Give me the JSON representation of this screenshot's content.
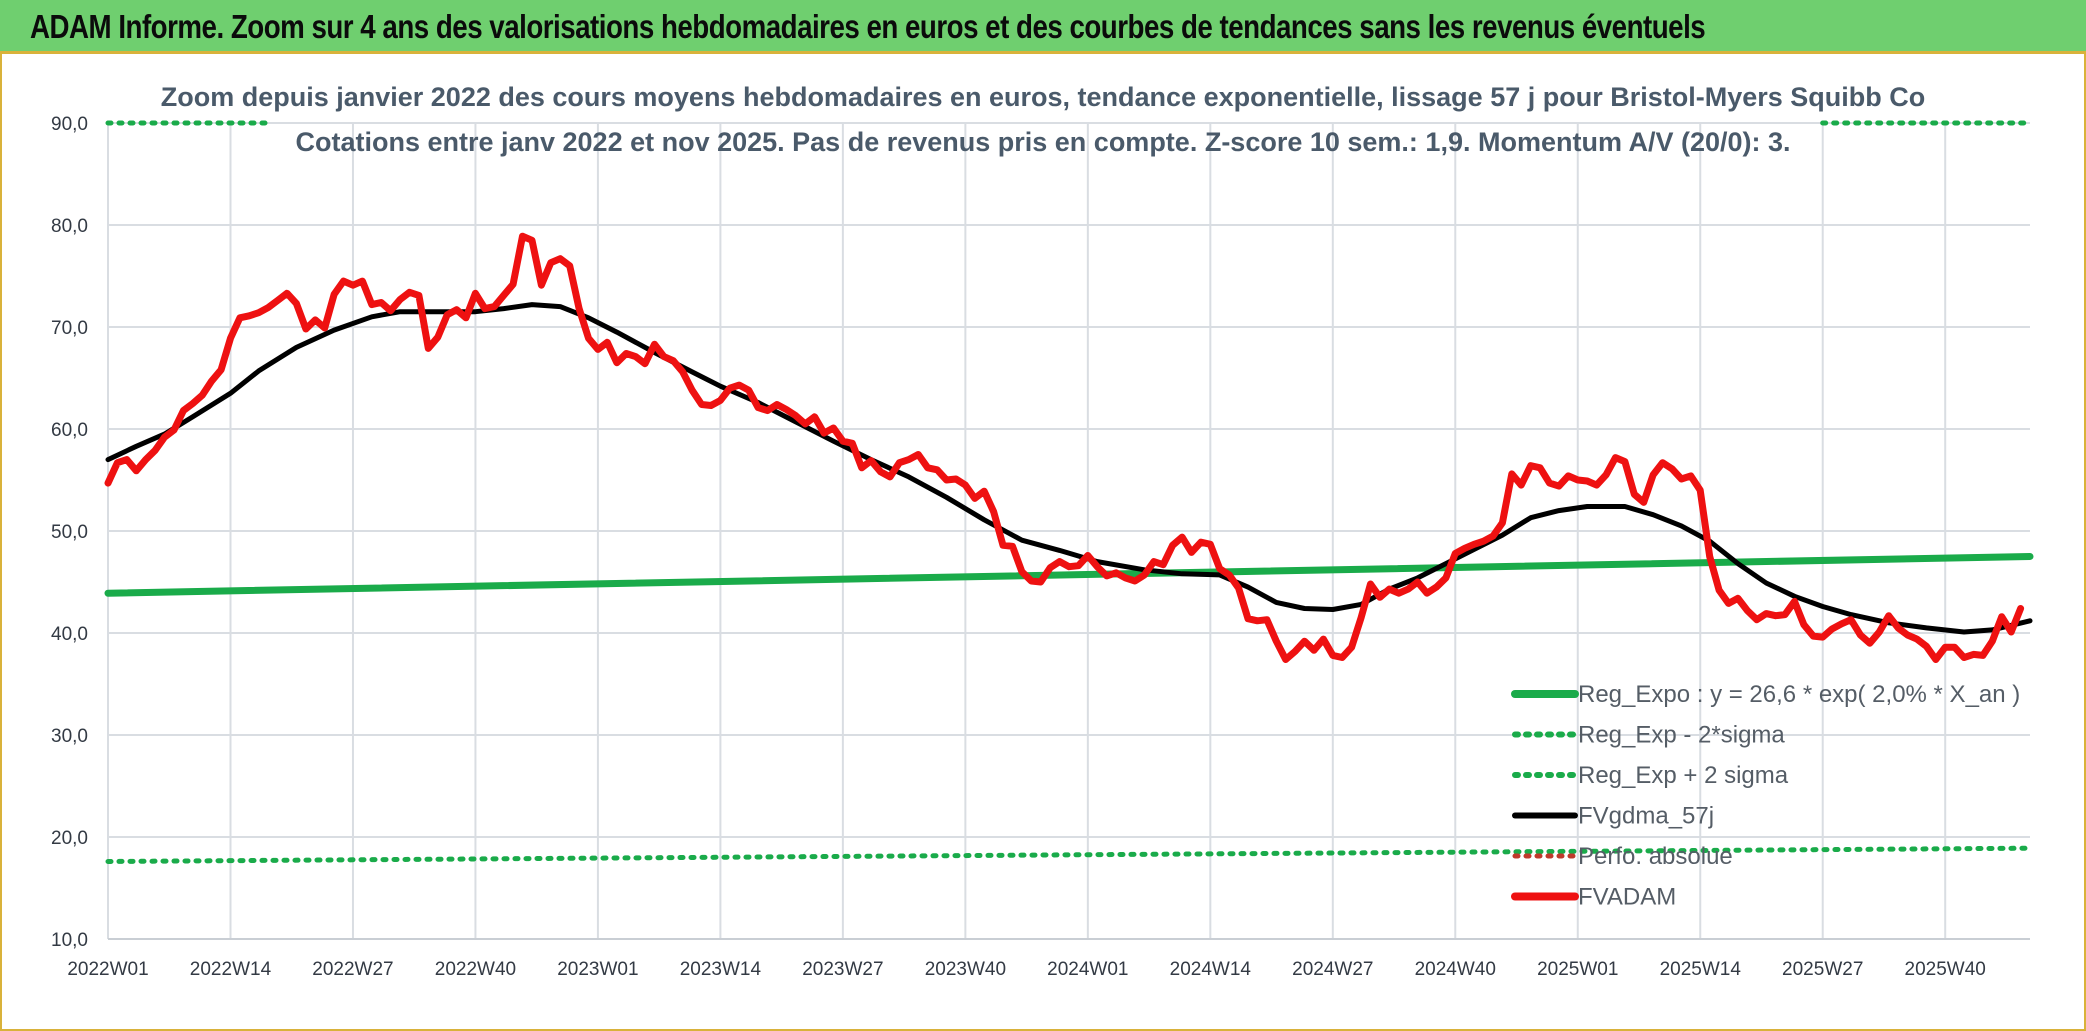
{
  "banner": {
    "title": "ADAM Informe. Zoom sur 4 ans des valorisations hebdomadaires en euros et des courbes de tendances sans les revenus éventuels"
  },
  "colors": {
    "banner_bg": "#6fcf6f",
    "frame": "#d9b23a",
    "reg_expo": "#1aab4a",
    "sigma_dotted": "#1aab4a",
    "fvgdma": "#000000",
    "perfo": "#c0392b",
    "fvadam": "#ee1111"
  },
  "chart_data": {
    "type": "line",
    "title": "Zoom depuis janvier 2022 des cours moyens hebdomadaires en euros, tendance exponentielle, lissage 57 j pour Bristol-Myers Squibb Co",
    "subtitle": "Cotations entre janv 2022 et nov 2025. Pas de revenus pris en compte. Z-score 10 sem.: 1,9. Momentum A/V (20/0): 3.",
    "ylim": [
      10,
      90
    ],
    "y_ticks": [
      "10,0",
      "20,0",
      "30,0",
      "40,0",
      "50,0",
      "60,0",
      "70,0",
      "80,0",
      "90,0"
    ],
    "x_ticks": [
      "2022W01",
      "2022W14",
      "2022W27",
      "2022W40",
      "2023W01",
      "2023W14",
      "2023W27",
      "2023W40",
      "2024W01",
      "2024W14",
      "2024W27",
      "2024W40",
      "2025W01",
      "2025W14",
      "2025W27",
      "2025W40"
    ],
    "x_range_weeks": [
      0,
      204
    ],
    "grid": true,
    "legend_position": "bottom-right",
    "series": [
      {
        "name": "Reg_Expo : y = 26,6 * exp( 2,0% *  X_an )",
        "style": "solid-thick",
        "points": [
          [
            0,
            43.9
          ],
          [
            204,
            47.5
          ]
        ]
      },
      {
        "name": "Reg_Exp - 2*sigma",
        "style": "dotted",
        "points": [
          [
            0,
            17.6
          ],
          [
            204,
            18.9
          ]
        ]
      },
      {
        "name": "Reg_Exp + 2 sigma",
        "style": "dotted",
        "points": [
          [
            0,
            90.0
          ],
          [
            17,
            90.0
          ]
        ],
        "points_b": [
          [
            182,
            90.0
          ],
          [
            204,
            90.0
          ]
        ]
      },
      {
        "name": "FVgdma_57j",
        "style": "solid",
        "points": [
          [
            0,
            57.0
          ],
          [
            3,
            58.3
          ],
          [
            6,
            59.5
          ],
          [
            9,
            61.2
          ],
          [
            13,
            63.5
          ],
          [
            16,
            65.7
          ],
          [
            20,
            68.0
          ],
          [
            24,
            69.7
          ],
          [
            28,
            71.0
          ],
          [
            31,
            71.5
          ],
          [
            35,
            71.5
          ],
          [
            39,
            71.5
          ],
          [
            42,
            71.8
          ],
          [
            45,
            72.2
          ],
          [
            48,
            72.0
          ],
          [
            51,
            70.9
          ],
          [
            54,
            69.5
          ],
          [
            58,
            67.5
          ],
          [
            62,
            65.6
          ],
          [
            65,
            64.2
          ],
          [
            69,
            62.6
          ],
          [
            73,
            60.7
          ],
          [
            77,
            58.8
          ],
          [
            81,
            57.0
          ],
          [
            85,
            55.3
          ],
          [
            89,
            53.3
          ],
          [
            93,
            51.1
          ],
          [
            97,
            49.1
          ],
          [
            101,
            48.1
          ],
          [
            105,
            47.0
          ],
          [
            110,
            46.2
          ],
          [
            114,
            45.8
          ],
          [
            118,
            45.7
          ],
          [
            121,
            44.5
          ],
          [
            124,
            43.0
          ],
          [
            127,
            42.4
          ],
          [
            130,
            42.3
          ],
          [
            133,
            42.8
          ],
          [
            136,
            44.3
          ],
          [
            139,
            45.4
          ],
          [
            142,
            46.8
          ],
          [
            145,
            48.2
          ],
          [
            148,
            49.6
          ],
          [
            151,
            51.3
          ],
          [
            154,
            52.0
          ],
          [
            157,
            52.4
          ],
          [
            161,
            52.4
          ],
          [
            164,
            51.6
          ],
          [
            167,
            50.5
          ],
          [
            170,
            49.0
          ],
          [
            173,
            46.8
          ],
          [
            176,
            44.9
          ],
          [
            179,
            43.6
          ],
          [
            182,
            42.6
          ],
          [
            185,
            41.8
          ],
          [
            189,
            41.0
          ],
          [
            193,
            40.5
          ],
          [
            197,
            40.1
          ],
          [
            200,
            40.3
          ],
          [
            204,
            41.2
          ]
        ]
      },
      {
        "name": "Perfo. absolue",
        "style": "dotted",
        "points": []
      },
      {
        "name": "FVADAM",
        "style": "solid-thick",
        "points": [
          [
            0,
            54.7
          ],
          [
            1,
            56.7
          ],
          [
            2,
            57.0
          ],
          [
            3,
            55.9
          ],
          [
            4,
            57.0
          ],
          [
            5,
            57.9
          ],
          [
            6,
            59.2
          ],
          [
            7,
            59.9
          ],
          [
            8,
            61.8
          ],
          [
            9,
            62.5
          ],
          [
            10,
            63.3
          ],
          [
            11,
            64.7
          ],
          [
            12,
            65.8
          ],
          [
            13,
            68.9
          ],
          [
            14,
            70.9
          ],
          [
            15,
            71.1
          ],
          [
            16,
            71.4
          ],
          [
            17,
            71.9
          ],
          [
            18,
            72.6
          ],
          [
            19,
            73.3
          ],
          [
            20,
            72.3
          ],
          [
            21,
            69.8
          ],
          [
            22,
            70.7
          ],
          [
            23,
            69.9
          ],
          [
            24,
            73.2
          ],
          [
            25,
            74.5
          ],
          [
            26,
            74.1
          ],
          [
            27,
            74.5
          ],
          [
            28,
            72.2
          ],
          [
            29,
            72.4
          ],
          [
            30,
            71.6
          ],
          [
            31,
            72.7
          ],
          [
            32,
            73.4
          ],
          [
            33,
            73.1
          ],
          [
            34,
            67.9
          ],
          [
            35,
            69.0
          ],
          [
            36,
            71.2
          ],
          [
            37,
            71.7
          ],
          [
            38,
            70.9
          ],
          [
            39,
            73.3
          ],
          [
            40,
            71.8
          ],
          [
            41,
            72.0
          ],
          [
            42,
            73.1
          ],
          [
            43,
            74.2
          ],
          [
            44,
            78.9
          ],
          [
            45,
            78.5
          ],
          [
            46,
            74.1
          ],
          [
            47,
            76.3
          ],
          [
            48,
            76.7
          ],
          [
            49,
            76.0
          ],
          [
            50,
            71.8
          ],
          [
            51,
            68.9
          ],
          [
            52,
            67.8
          ],
          [
            53,
            68.5
          ],
          [
            54,
            66.5
          ],
          [
            55,
            67.4
          ],
          [
            56,
            67.1
          ],
          [
            57,
            66.4
          ],
          [
            58,
            68.3
          ],
          [
            59,
            67.1
          ],
          [
            60,
            66.7
          ],
          [
            61,
            65.6
          ],
          [
            62,
            63.8
          ],
          [
            63,
            62.4
          ],
          [
            64,
            62.3
          ],
          [
            65,
            62.8
          ],
          [
            66,
            64.0
          ],
          [
            67,
            64.3
          ],
          [
            68,
            63.8
          ],
          [
            69,
            62.1
          ],
          [
            70,
            61.8
          ],
          [
            71,
            62.4
          ],
          [
            72,
            61.9
          ],
          [
            73,
            61.3
          ],
          [
            74,
            60.5
          ],
          [
            75,
            61.2
          ],
          [
            76,
            59.6
          ],
          [
            77,
            60.1
          ],
          [
            78,
            58.8
          ],
          [
            79,
            58.6
          ],
          [
            80,
            56.2
          ],
          [
            81,
            56.9
          ],
          [
            82,
            55.8
          ],
          [
            83,
            55.3
          ],
          [
            84,
            56.7
          ],
          [
            85,
            57.0
          ],
          [
            86,
            57.5
          ],
          [
            87,
            56.2
          ],
          [
            88,
            56.0
          ],
          [
            89,
            55.0
          ],
          [
            90,
            55.1
          ],
          [
            91,
            54.5
          ],
          [
            92,
            53.2
          ],
          [
            93,
            53.9
          ],
          [
            94,
            51.9
          ],
          [
            95,
            48.6
          ],
          [
            96,
            48.5
          ],
          [
            97,
            46.0
          ],
          [
            98,
            45.1
          ],
          [
            99,
            45.0
          ],
          [
            100,
            46.4
          ],
          [
            101,
            47.0
          ],
          [
            102,
            46.5
          ],
          [
            103,
            46.6
          ],
          [
            104,
            47.6
          ],
          [
            105,
            46.5
          ],
          [
            106,
            45.6
          ],
          [
            107,
            45.9
          ],
          [
            108,
            45.4
          ],
          [
            109,
            45.1
          ],
          [
            110,
            45.7
          ],
          [
            111,
            47.0
          ],
          [
            112,
            46.7
          ],
          [
            113,
            48.6
          ],
          [
            114,
            49.4
          ],
          [
            115,
            47.9
          ],
          [
            116,
            48.9
          ],
          [
            117,
            48.7
          ],
          [
            118,
            46.3
          ],
          [
            119,
            45.7
          ],
          [
            120,
            44.4
          ],
          [
            121,
            41.4
          ],
          [
            122,
            41.2
          ],
          [
            123,
            41.3
          ],
          [
            124,
            39.2
          ],
          [
            125,
            37.4
          ],
          [
            126,
            38.2
          ],
          [
            127,
            39.2
          ],
          [
            128,
            38.3
          ],
          [
            129,
            39.4
          ],
          [
            130,
            37.8
          ],
          [
            131,
            37.6
          ],
          [
            132,
            38.6
          ],
          [
            133,
            41.5
          ],
          [
            134,
            44.8
          ],
          [
            135,
            43.5
          ],
          [
            136,
            44.3
          ],
          [
            137,
            43.9
          ],
          [
            138,
            44.3
          ],
          [
            139,
            45.0
          ],
          [
            140,
            43.9
          ],
          [
            141,
            44.5
          ],
          [
            142,
            45.4
          ],
          [
            143,
            47.8
          ],
          [
            144,
            48.3
          ],
          [
            145,
            48.7
          ],
          [
            146,
            49.0
          ],
          [
            147,
            49.5
          ],
          [
            148,
            50.8
          ],
          [
            149,
            55.6
          ],
          [
            150,
            54.5
          ],
          [
            151,
            56.4
          ],
          [
            152,
            56.2
          ],
          [
            153,
            54.7
          ],
          [
            154,
            54.4
          ],
          [
            155,
            55.4
          ],
          [
            156,
            55.0
          ],
          [
            157,
            54.9
          ],
          [
            158,
            54.5
          ],
          [
            159,
            55.5
          ],
          [
            160,
            57.2
          ],
          [
            161,
            56.8
          ],
          [
            162,
            53.6
          ],
          [
            163,
            52.8
          ],
          [
            164,
            55.5
          ],
          [
            165,
            56.7
          ],
          [
            166,
            56.1
          ],
          [
            167,
            55.1
          ],
          [
            168,
            55.4
          ],
          [
            169,
            54.0
          ],
          [
            170,
            47.5
          ],
          [
            171,
            44.2
          ],
          [
            172,
            42.9
          ],
          [
            173,
            43.4
          ],
          [
            174,
            42.2
          ],
          [
            175,
            41.3
          ],
          [
            176,
            41.9
          ],
          [
            177,
            41.7
          ],
          [
            178,
            41.8
          ],
          [
            179,
            43.1
          ],
          [
            180,
            40.8
          ],
          [
            181,
            39.7
          ],
          [
            182,
            39.6
          ],
          [
            183,
            40.4
          ],
          [
            184,
            40.9
          ],
          [
            185,
            41.3
          ],
          [
            186,
            39.8
          ],
          [
            187,
            39.0
          ],
          [
            188,
            40.1
          ],
          [
            189,
            41.7
          ],
          [
            190,
            40.5
          ],
          [
            191,
            39.8
          ],
          [
            192,
            39.4
          ],
          [
            193,
            38.7
          ],
          [
            194,
            37.4
          ],
          [
            195,
            38.6
          ],
          [
            196,
            38.6
          ],
          [
            197,
            37.6
          ],
          [
            198,
            37.9
          ],
          [
            199,
            37.8
          ],
          [
            200,
            39.2
          ],
          [
            201,
            41.6
          ],
          [
            202,
            40.1
          ],
          [
            203,
            42.4
          ]
        ]
      }
    ]
  }
}
